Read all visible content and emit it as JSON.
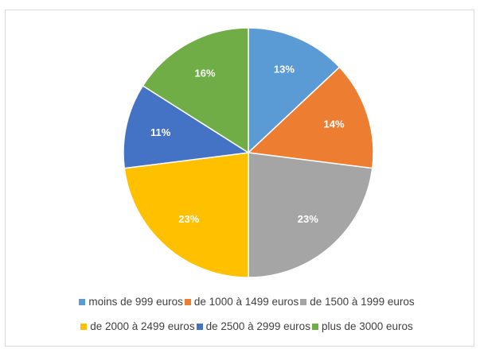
{
  "chart_data": {
    "type": "pie",
    "categories": [
      "moins de 999 euros",
      "de 1000 à 1499 euros",
      "de 1500 à 1999 euros",
      "de 2000 à 2499 euros",
      "de 2500 à 2999 euros",
      "plus de 3000 euros"
    ],
    "values": [
      13,
      14,
      23,
      23,
      11,
      16
    ],
    "value_labels": [
      "13%",
      "14%",
      "23%",
      "23%",
      "11%",
      "16%"
    ],
    "colors": [
      "#5b9bd5",
      "#ed7d31",
      "#a5a5a5",
      "#ffc000",
      "#4472c4",
      "#70ad47"
    ],
    "legend": "bottom"
  }
}
